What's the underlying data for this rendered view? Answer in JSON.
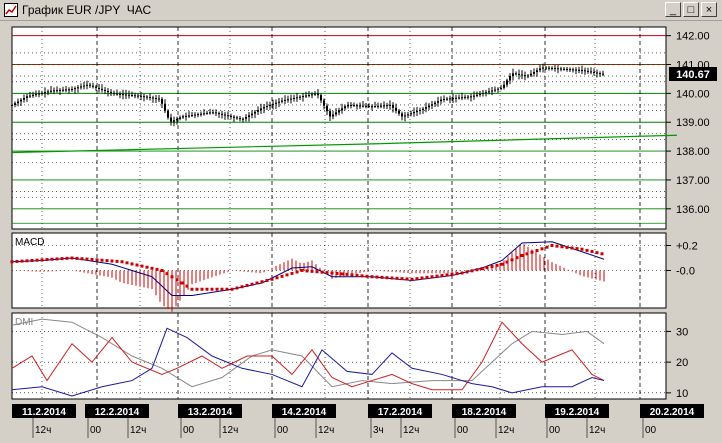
{
  "window": {
    "title": "График EUR /JPY  ЧАС",
    "minimize_glyph": "_",
    "maximize_glyph": "□",
    "close_glyph": "×"
  },
  "price_panel": {
    "y_ticks": [
      "142.00",
      "141.00",
      "140.00",
      "139.00",
      "138.00",
      "137.00",
      "136.00"
    ],
    "current_price": "140.67"
  },
  "macd_panel": {
    "label": "MACD",
    "y_ticks": [
      "+0.2",
      "-0.0"
    ]
  },
  "dmi_panel": {
    "label": "DMI",
    "y_ticks": [
      "30",
      "20",
      "10"
    ]
  },
  "x_axis": {
    "dates": [
      "11.2.2014",
      "12.2.2014",
      "13.2.2014",
      "14.2.2014",
      "17.2.2014",
      "18.2.2014",
      "19.2.2014",
      "20.2.2014"
    ],
    "hours": [
      "12ч",
      "00",
      "12ч",
      "00",
      "12ч",
      "00",
      "12ч",
      "3ч",
      "12ч",
      "00",
      "12ч",
      "00",
      "12ч",
      "00"
    ]
  },
  "chart_data": {
    "type": "candlestick",
    "instrument": "EUR/JPY",
    "timeframe": "ЧАС",
    "price_range": [
      135.3,
      142.3
    ],
    "reference_lines": [
      142.0,
      141.0,
      140.0,
      139.0
    ],
    "current_price": 140.67,
    "price_path": [
      [
        0,
        139.6
      ],
      [
        15,
        139.9
      ],
      [
        40,
        140.1
      ],
      [
        60,
        140.15
      ],
      [
        75,
        140.3
      ],
      [
        100,
        140.0
      ],
      [
        130,
        139.9
      ],
      [
        148,
        139.8
      ],
      [
        158,
        139.0
      ],
      [
        170,
        139.2
      ],
      [
        200,
        139.35
      ],
      [
        230,
        139.1
      ],
      [
        250,
        139.5
      ],
      [
        270,
        139.75
      ],
      [
        290,
        139.9
      ],
      [
        305,
        140.0
      ],
      [
        318,
        139.2
      ],
      [
        335,
        139.6
      ],
      [
        360,
        139.55
      ],
      [
        378,
        139.6
      ],
      [
        390,
        139.2
      ],
      [
        410,
        139.45
      ],
      [
        430,
        139.8
      ],
      [
        460,
        139.9
      ],
      [
        490,
        140.2
      ],
      [
        500,
        140.7
      ],
      [
        515,
        140.6
      ],
      [
        530,
        140.9
      ],
      [
        550,
        140.85
      ],
      [
        570,
        140.8
      ],
      [
        590,
        140.67
      ]
    ],
    "trend_line": [
      [
        0,
        137.95
      ],
      [
        180,
        138.1
      ],
      [
        360,
        138.25
      ],
      [
        665,
        138.55
      ]
    ],
    "macd": {
      "y_range": [
        -0.3,
        0.3
      ],
      "macd_line": [
        [
          0,
          0.07
        ],
        [
          30,
          0.08
        ],
        [
          60,
          0.1
        ],
        [
          100,
          0.05
        ],
        [
          140,
          -0.05
        ],
        [
          160,
          -0.2
        ],
        [
          180,
          -0.2
        ],
        [
          220,
          -0.15
        ],
        [
          250,
          -0.1
        ],
        [
          280,
          0.02
        ],
        [
          300,
          0.03
        ],
        [
          320,
          -0.05
        ],
        [
          360,
          -0.05
        ],
        [
          400,
          -0.08
        ],
        [
          440,
          -0.04
        ],
        [
          470,
          0.02
        ],
        [
          490,
          0.08
        ],
        [
          510,
          0.22
        ],
        [
          540,
          0.23
        ],
        [
          570,
          0.15
        ],
        [
          592,
          0.09
        ]
      ],
      "signal_line": [
        [
          0,
          0.07
        ],
        [
          60,
          0.1
        ],
        [
          110,
          0.07
        ],
        [
          150,
          0.0
        ],
        [
          180,
          -0.15
        ],
        [
          220,
          -0.15
        ],
        [
          260,
          -0.07
        ],
        [
          290,
          0.0
        ],
        [
          320,
          -0.02
        ],
        [
          360,
          -0.05
        ],
        [
          400,
          -0.07
        ],
        [
          450,
          -0.02
        ],
        [
          490,
          0.05
        ],
        [
          510,
          0.12
        ],
        [
          540,
          0.2
        ],
        [
          570,
          0.17
        ],
        [
          592,
          0.13
        ]
      ]
    },
    "dmi": {
      "y_range": [
        8,
        36
      ],
      "series": [
        {
          "color": "#888888",
          "points": [
            [
              0,
              32
            ],
            [
              30,
              34
            ],
            [
              60,
              33
            ],
            [
              90,
              28
            ],
            [
              120,
              22
            ],
            [
              150,
              18
            ],
            [
              180,
              12
            ],
            [
              210,
              15
            ],
            [
              240,
              22
            ],
            [
              260,
              24
            ],
            [
              290,
              22
            ],
            [
              320,
              12
            ],
            [
              350,
              14
            ],
            [
              380,
              13
            ],
            [
              420,
              14
            ],
            [
              460,
              14
            ],
            [
              480,
              20
            ],
            [
              500,
              26
            ],
            [
              520,
              30
            ],
            [
              550,
              29
            ],
            [
              575,
              30
            ],
            [
              592,
              26
            ]
          ]
        },
        {
          "color": "#cc2222",
          "points": [
            [
              0,
              18
            ],
            [
              20,
              22
            ],
            [
              35,
              14
            ],
            [
              60,
              26
            ],
            [
              80,
              20
            ],
            [
              100,
              28
            ],
            [
              120,
              20
            ],
            [
              150,
              16
            ],
            [
              165,
              18
            ],
            [
              190,
              22
            ],
            [
              210,
              18
            ],
            [
              235,
              22
            ],
            [
              260,
              22
            ],
            [
              280,
              16
            ],
            [
              300,
              24
            ],
            [
              320,
              15
            ],
            [
              340,
              12
            ],
            [
              360,
              14
            ],
            [
              380,
              16
            ],
            [
              400,
              13
            ],
            [
              420,
              11
            ],
            [
              450,
              11
            ],
            [
              470,
              20
            ],
            [
              490,
              33
            ],
            [
              510,
              26
            ],
            [
              530,
              20
            ],
            [
              560,
              24
            ],
            [
              580,
              16
            ],
            [
              592,
              14
            ]
          ]
        },
        {
          "color": "#1a1a9a",
          "points": [
            [
              0,
              11
            ],
            [
              30,
              12
            ],
            [
              60,
              9
            ],
            [
              90,
              12
            ],
            [
              120,
              14
            ],
            [
              140,
              18
            ],
            [
              155,
              31
            ],
            [
              175,
              28
            ],
            [
              200,
              22
            ],
            [
              230,
              18
            ],
            [
              260,
              16
            ],
            [
              290,
              12
            ],
            [
              310,
              24
            ],
            [
              335,
              17
            ],
            [
              360,
              16
            ],
            [
              380,
              23
            ],
            [
              400,
              18
            ],
            [
              430,
              16
            ],
            [
              460,
              13
            ],
            [
              480,
              12
            ],
            [
              500,
              10
            ],
            [
              530,
              12
            ],
            [
              560,
              12
            ],
            [
              580,
              15
            ],
            [
              592,
              14
            ]
          ]
        }
      ]
    }
  }
}
